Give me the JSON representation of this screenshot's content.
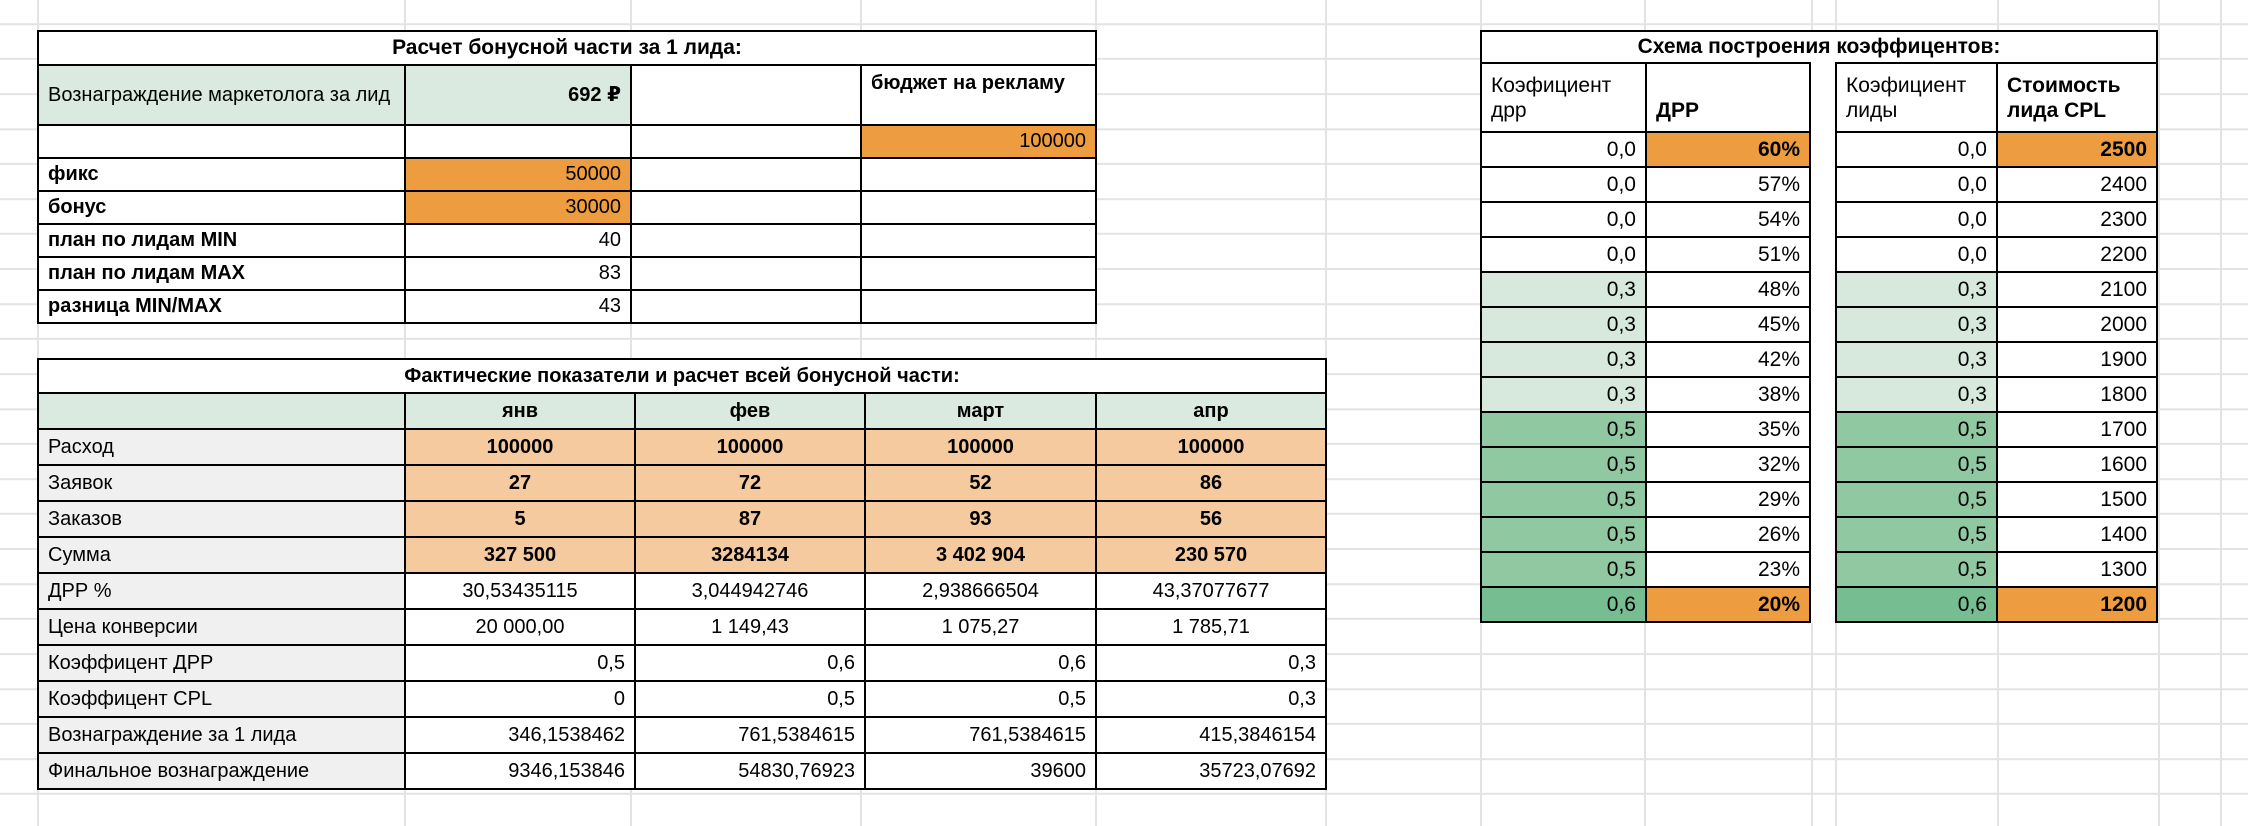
{
  "colors": {
    "orange": "#ED9D3F",
    "peach": "#F4CA9E",
    "mint": "#DAEAE0",
    "green_light": "#D7E9DC",
    "green_mid": "#90C8A2",
    "green_dark": "#76BD92",
    "label_gray": "#F0F0F0",
    "grid": "#E3E3E3",
    "border": "#000000"
  },
  "bonus_table": {
    "title": "Расчет бонусной части за 1 лида:",
    "rows": [
      [
        {
          "t": "Вознаграждение маркетолога за лид",
          "fill": "mint"
        },
        {
          "t": "692 ₽",
          "fill": "mint",
          "bold": true,
          "align": "right"
        },
        {},
        {
          "t": "бюджет на рекламу",
          "bold": true,
          "vtop": true
        }
      ],
      [
        {},
        {},
        {},
        {
          "t": "100000",
          "fill": "orange",
          "align": "right"
        }
      ],
      [
        {
          "t": "фикс",
          "bold": true
        },
        {
          "t": "50000",
          "fill": "orange",
          "align": "right"
        },
        {},
        {}
      ],
      [
        {
          "t": "бонус",
          "bold": true
        },
        {
          "t": "30000",
          "fill": "orange",
          "align": "right"
        },
        {},
        {}
      ],
      [
        {
          "t": "план по лидам MIN",
          "bold": true
        },
        {
          "t": "40",
          "align": "right"
        },
        {},
        {}
      ],
      [
        {
          "t": "план по лидам MAX",
          "bold": true
        },
        {
          "t": "83",
          "align": "right"
        },
        {},
        {}
      ],
      [
        {
          "t": "разница MIN/MAX",
          "bold": true
        },
        {
          "t": "43",
          "align": "right"
        },
        {},
        {}
      ]
    ]
  },
  "actuals_table": {
    "title": "Фактические показатели и расчет всей бонусной части:",
    "months": [
      "янв",
      "фев",
      "март",
      "апр"
    ],
    "rows": [
      {
        "label": "Расход",
        "values": [
          "100000",
          "100000",
          "100000",
          "100000"
        ],
        "fill": "peach",
        "bold": true,
        "align": "center"
      },
      {
        "label": "Заявок",
        "values": [
          "27",
          "72",
          "52",
          "86"
        ],
        "fill": "peach",
        "bold": true,
        "align": "center"
      },
      {
        "label": "Заказов",
        "values": [
          "5",
          "87",
          "93",
          "56"
        ],
        "fill": "peach",
        "bold": true,
        "align": "center"
      },
      {
        "label": "Сумма",
        "values": [
          "327 500",
          "3284134",
          "3 402 904",
          "230 570"
        ],
        "fill": "peach",
        "bold": true,
        "align": "center"
      },
      {
        "label": "ДРР %",
        "values": [
          "30,53435115",
          "3,044942746",
          "2,938666504",
          "43,37077677"
        ],
        "align": "center"
      },
      {
        "label": "Цена конверсии",
        "values": [
          "20 000,00",
          "1 149,43",
          "1 075,27",
          "1 785,71"
        ],
        "align": "center"
      },
      {
        "label": "Коэффицент ДРР",
        "values": [
          "0,5",
          "0,6",
          "0,6",
          "0,3"
        ],
        "align": "right"
      },
      {
        "label": "Коэффицент CPL",
        "values": [
          "0",
          "0,5",
          "0,5",
          "0,3"
        ],
        "align": "right"
      },
      {
        "label": "Вознаграждение за 1 лида",
        "values": [
          "346,1538462",
          "761,5384615",
          "761,5384615",
          "415,3846154"
        ],
        "align": "right"
      },
      {
        "label": "Финальное вознаграждение",
        "values": [
          "9346,153846",
          "54830,76923",
          "39600",
          "35723,07692"
        ],
        "align": "right"
      }
    ]
  },
  "scheme": {
    "title": "Схема построения коэффицентов:",
    "drr_table": {
      "headers": [
        "Коэфициент дрр",
        "ДРР"
      ],
      "headers_bold": [
        false,
        true
      ],
      "rows": [
        [
          "0,0",
          "60%"
        ],
        [
          "0,0",
          "57%"
        ],
        [
          "0,0",
          "54%"
        ],
        [
          "0,0",
          "51%"
        ],
        [
          "0,3",
          "48%"
        ],
        [
          "0,3",
          "45%"
        ],
        [
          "0,3",
          "42%"
        ],
        [
          "0,3",
          "38%"
        ],
        [
          "0,5",
          "35%"
        ],
        [
          "0,5",
          "32%"
        ],
        [
          "0,5",
          "29%"
        ],
        [
          "0,5",
          "26%"
        ],
        [
          "0,5",
          "23%"
        ],
        [
          "0,6",
          "20%"
        ]
      ],
      "highlight_rows": [
        0,
        13
      ]
    },
    "cpl_table": {
      "headers": [
        "Коэфициент лиды",
        "Стоимость лида CPL"
      ],
      "headers_bold": [
        false,
        true
      ],
      "rows": [
        [
          "0,0",
          "2500"
        ],
        [
          "0,0",
          "2400"
        ],
        [
          "0,0",
          "2300"
        ],
        [
          "0,0",
          "2200"
        ],
        [
          "0,3",
          "2100"
        ],
        [
          "0,3",
          "2000"
        ],
        [
          "0,3",
          "1900"
        ],
        [
          "0,3",
          "1800"
        ],
        [
          "0,5",
          "1700"
        ],
        [
          "0,5",
          "1600"
        ],
        [
          "0,5",
          "1500"
        ],
        [
          "0,5",
          "1400"
        ],
        [
          "0,5",
          "1300"
        ],
        [
          "0,6",
          "1200"
        ]
      ],
      "highlight_rows": [
        0,
        13
      ]
    }
  }
}
